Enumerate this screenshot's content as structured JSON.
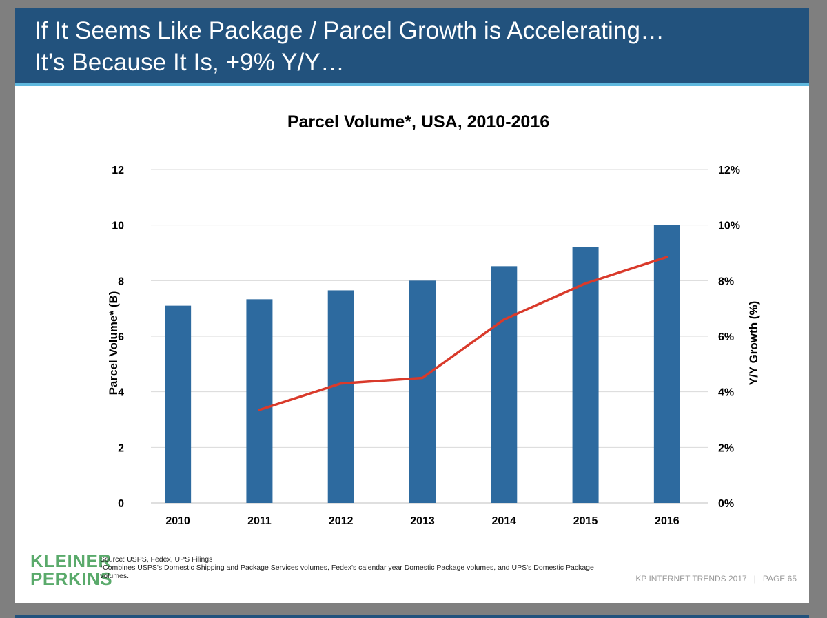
{
  "slide": {
    "title_line1": "If It Seems Like Package / Parcel Growth is Accelerating…",
    "title_line2": "It’s Because It Is, +9% Y/Y…",
    "logo_line1": "KLEINER",
    "logo_line2": "PERKINS",
    "source_line1": "Source: USPS, Fedex, UPS Filings",
    "source_line2": "*Combines USPS's Domestic Shipping and Package Services volumes, Fedex's calendar year Domestic Package volumes, and UPS's Domestic Package volumes.",
    "footer_text": "KP INTERNET TRENDS 2017",
    "footer_sep": "|",
    "footer_page": "PAGE 65"
  },
  "colors": {
    "title_bg": "#22527d",
    "accent": "#5fb8de",
    "bar": "#2d6a9f",
    "line": "#d93a2b",
    "logo": "#5aaa6b"
  },
  "chart_data": {
    "type": "bar",
    "title": "Parcel Volume*, USA, 2010-2016",
    "ylabel": "Parcel Volume* (B)",
    "y2label": "Y/Y Growth (%)",
    "categories": [
      "2010",
      "2011",
      "2012",
      "2013",
      "2014",
      "2015",
      "2016"
    ],
    "ylim": [
      0,
      12
    ],
    "yticks": [
      "0",
      "2",
      "4",
      "6",
      "8",
      "10",
      "12"
    ],
    "y2lim": [
      0,
      12
    ],
    "y2ticks": [
      "0%",
      "2%",
      "4%",
      "6%",
      "8%",
      "10%",
      "12%"
    ],
    "series": [
      {
        "name": "Parcel Volume (B)",
        "kind": "bar",
        "axis": "left",
        "values": [
          7.1,
          7.33,
          7.65,
          8.0,
          8.52,
          9.2,
          10.0
        ]
      },
      {
        "name": "Y/Y Growth (%)",
        "kind": "line",
        "axis": "right",
        "values": [
          null,
          3.35,
          4.3,
          4.5,
          6.6,
          7.9,
          8.85
        ]
      }
    ],
    "grid": true,
    "legend": "none"
  }
}
